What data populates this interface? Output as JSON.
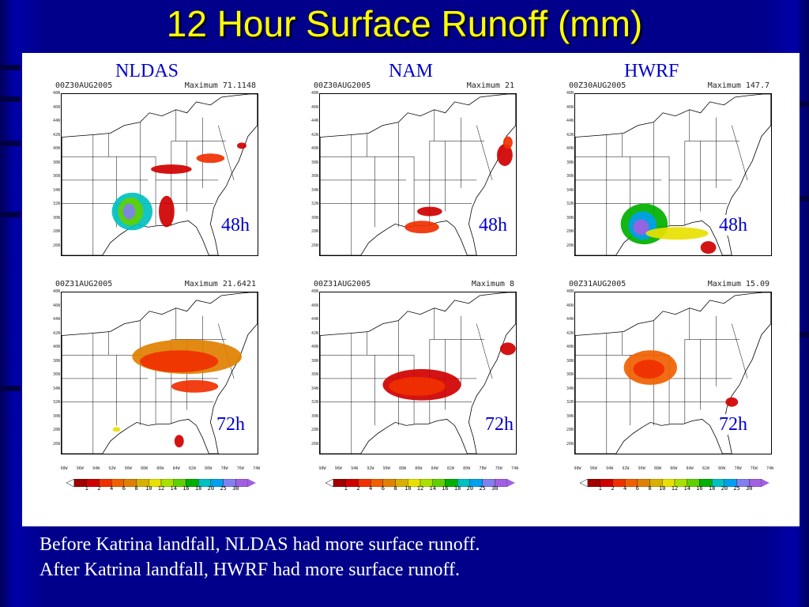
{
  "title": "12 Hour Surface Runoff (mm)",
  "models": [
    "NLDAS",
    "NAM",
    "HWRF"
  ],
  "panels": [
    {
      "model": "NLDAS",
      "date": "00Z30AUG2005",
      "maximum": "Maximum 71.1148",
      "hour": "48h"
    },
    {
      "model": "NAM",
      "date": "00Z30AUG2005",
      "maximum": "Maximum 21",
      "hour": "48h"
    },
    {
      "model": "HWRF",
      "date": "00Z30AUG2005",
      "maximum": "Maximum 147.7",
      "hour": "48h"
    },
    {
      "model": "NLDAS",
      "date": "00Z31AUG2005",
      "maximum": "Maximum 21.6421",
      "hour": "72h"
    },
    {
      "model": "NAM",
      "date": "00Z31AUG2005",
      "maximum": "Maximum 8",
      "hour": "72h"
    },
    {
      "model": "HWRF",
      "date": "00Z31AUG2005",
      "maximum": "Maximum 15.09",
      "hour": "72h"
    }
  ],
  "latitude_labels": [
    "48N",
    "46N",
    "44N",
    "42N",
    "40N",
    "38N",
    "36N",
    "34N",
    "32N",
    "30N",
    "28N",
    "26N"
  ],
  "longitude_labels": [
    "98W",
    "96W",
    "94W",
    "92W",
    "90W",
    "88W",
    "86W",
    "84W",
    "82W",
    "80W",
    "78W",
    "76W",
    "74W"
  ],
  "colorbar": {
    "ticks": [
      "1",
      "2",
      "4",
      "6",
      "8",
      "10",
      "12",
      "14",
      "16",
      "18",
      "20",
      "25",
      "30"
    ],
    "colors": [
      "#a00000",
      "#d00000",
      "#f03000",
      "#f06000",
      "#e08000",
      "#d8b000",
      "#e8e000",
      "#a8e000",
      "#60d000",
      "#00b000",
      "#00c0c0",
      "#00a0f0",
      "#8080f0",
      "#a060e0"
    ]
  },
  "captions": [
    "Before Katrina landfall, NLDAS had more surface runoff.",
    "After Katrina landfall, HWRF had more surface runoff."
  ]
}
